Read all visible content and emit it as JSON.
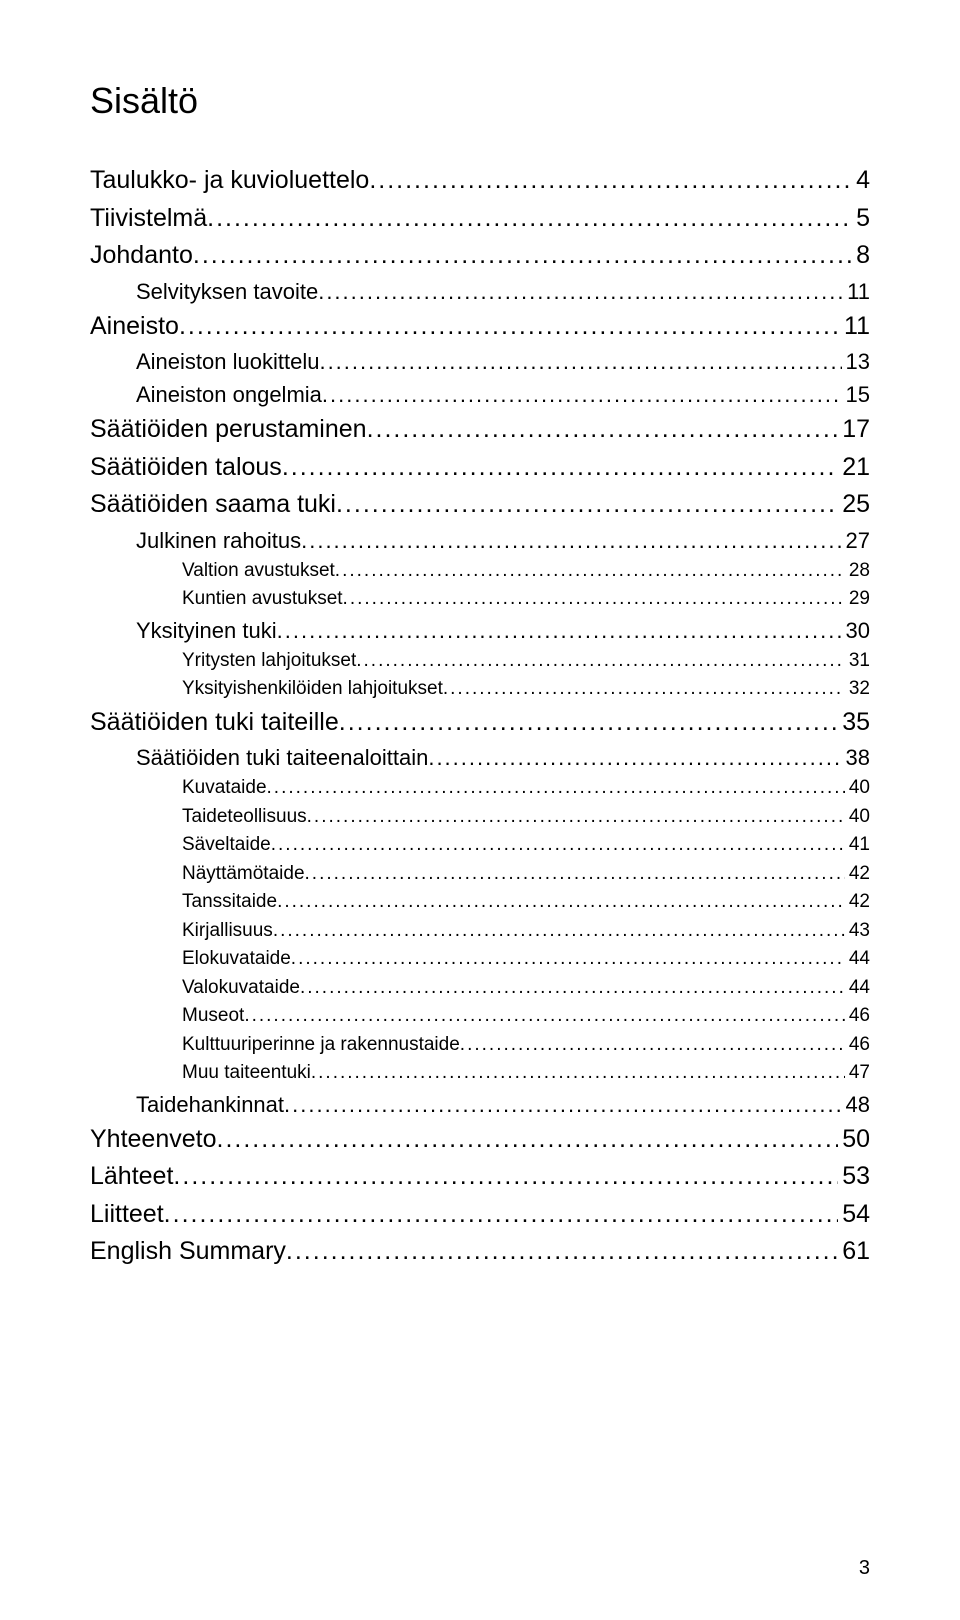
{
  "title": "Sisältö",
  "title_fontsize": 36,
  "title_color": "#000000",
  "background_color": "#ffffff",
  "text_color": "#000000",
  "font_lvl0": 25,
  "font_lvl1": 22,
  "font_lvl2": 19,
  "leader_color": "#000000",
  "page_number": "3",
  "page_number_fontsize": 20,
  "entries": [
    {
      "label": "Taulukko- ja kuvioluettelo",
      "page": "4",
      "level": 0
    },
    {
      "label": "Tiivistelmä",
      "page": "5",
      "level": 0
    },
    {
      "label": "Johdanto",
      "page": "8",
      "level": 0
    },
    {
      "label": "Selvityksen tavoite",
      "page": "11",
      "level": 1
    },
    {
      "label": "Aineisto",
      "page": "11",
      "level": 0
    },
    {
      "label": "Aineiston luokittelu",
      "page": "13",
      "level": 1
    },
    {
      "label": "Aineiston ongelmia",
      "page": "15",
      "level": 1
    },
    {
      "label": "Säätiöiden perustaminen",
      "page": "17",
      "level": 0
    },
    {
      "label": "Säätiöiden talous",
      "page": "21",
      "level": 0
    },
    {
      "label": "Säätiöiden saama tuki",
      "page": "25",
      "level": 0
    },
    {
      "label": "Julkinen rahoitus",
      "page": "27",
      "level": 1
    },
    {
      "label": "Valtion avustukset",
      "page": "28",
      "level": 2
    },
    {
      "label": "Kuntien avustukset",
      "page": "29",
      "level": 2
    },
    {
      "label": "Yksityinen tuki",
      "page": "30",
      "level": 1
    },
    {
      "label": "Yritysten lahjoitukset",
      "page": "31",
      "level": 2
    },
    {
      "label": "Yksityishenkilöiden lahjoitukset",
      "page": "32",
      "level": 2
    },
    {
      "label": "Säätiöiden tuki taiteille",
      "page": "35",
      "level": 0
    },
    {
      "label": "Säätiöiden tuki taiteenaloittain",
      "page": "38",
      "level": 1
    },
    {
      "label": "Kuvataide",
      "page": "40",
      "level": 2
    },
    {
      "label": "Taideteollisuus",
      "page": "40",
      "level": 2
    },
    {
      "label": "Säveltaide",
      "page": "41",
      "level": 2
    },
    {
      "label": "Näyttämötaide",
      "page": "42",
      "level": 2
    },
    {
      "label": "Tanssitaide",
      "page": "42",
      "level": 2
    },
    {
      "label": "Kirjallisuus",
      "page": "43",
      "level": 2
    },
    {
      "label": "Elokuvataide",
      "page": "44",
      "level": 2
    },
    {
      "label": "Valokuvataide",
      "page": "44",
      "level": 2
    },
    {
      "label": "Museot",
      "page": "46",
      "level": 2
    },
    {
      "label": "Kulttuuriperinne ja rakennustaide",
      "page": "46",
      "level": 2
    },
    {
      "label": "Muu taiteentuki",
      "page": "47",
      "level": 2
    },
    {
      "label": "Taidehankinnat",
      "page": "48",
      "level": 1
    },
    {
      "label": "Yhteenveto",
      "page": "50",
      "level": 0
    },
    {
      "label": "Lähteet",
      "page": "53",
      "level": 0
    },
    {
      "label": "Liitteet",
      "page": "54",
      "level": 0
    },
    {
      "label": "English Summary",
      "page": "61",
      "level": 0
    }
  ]
}
